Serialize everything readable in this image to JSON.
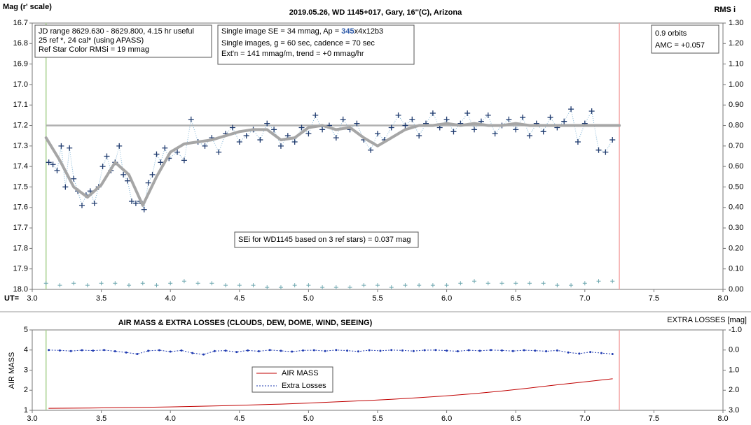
{
  "chart_data": [
    {
      "type": "scatter",
      "title": "2019.05.26, WD 1145+017, Gary, 16''(C), Arizona",
      "ylabel": "Mag (r' scale)",
      "y2label": "RMS i",
      "xlabel": "UT=",
      "xlim": [
        3,
        8
      ],
      "xticks": [
        {
          "value": 3,
          "label": "3.0"
        },
        3.5,
        {
          "value": 4,
          "label": "4.0"
        },
        4.5,
        {
          "value": 5,
          "label": "5.0"
        },
        5.5,
        {
          "value": 6,
          "label": "6.0"
        },
        6.5,
        {
          "value": 7,
          "label": "7.0"
        },
        7.5,
        {
          "value": 8,
          "label": "8.0"
        }
      ],
      "ylim": [
        16.7,
        18.0
      ],
      "y_inverted": true,
      "yticks": [
        16.7,
        16.8,
        16.9,
        {
          "value": 17,
          "label": "17.0"
        },
        17.1,
        17.2,
        17.3,
        17.4,
        17.5,
        17.6,
        17.7,
        17.8,
        17.9,
        {
          "value": 18,
          "label": "18.0"
        }
      ],
      "y2lim": [
        0,
        1.3
      ],
      "y2ticks": [
        {
          "value": 0,
          "label": "0.00"
        },
        {
          "value": 0.1,
          "label": "0.10"
        },
        {
          "value": 0.2,
          "label": "0.20"
        },
        {
          "value": 0.3,
          "label": "0.30"
        },
        {
          "value": 0.4,
          "label": "0.40"
        },
        {
          "value": 0.5,
          "label": "0.50"
        },
        {
          "value": 0.6,
          "label": "0.60"
        },
        {
          "value": 0.7,
          "label": "0.70"
        },
        {
          "value": 0.8,
          "label": "0.80"
        },
        {
          "value": 0.9,
          "label": "0.90"
        },
        {
          "value": 1,
          "label": "1.00"
        },
        {
          "value": 1.1,
          "label": "1.10"
        },
        {
          "value": 1.2,
          "label": "1.20"
        },
        {
          "value": 1.3,
          "label": "1.30"
        }
      ],
      "vlines": [
        {
          "value": 3.1,
          "color": "#a9d18e"
        },
        {
          "value": 7.25,
          "color": "#f4a6a6"
        }
      ],
      "hlines": [
        {
          "value": 17.2,
          "color": "#b0b0b0"
        }
      ],
      "series": [
        {
          "type": "scatter",
          "color": "#1f3a6e",
          "x": [
            3.12,
            3.15,
            3.18,
            3.21,
            3.24,
            3.27,
            3.3,
            3.33,
            3.36,
            3.39,
            3.42,
            3.45,
            3.48,
            3.51,
            3.54,
            3.57,
            3.6,
            3.63,
            3.66,
            3.69,
            3.72,
            3.75,
            3.78,
            3.81,
            3.84,
            3.87,
            3.9,
            3.93,
            3.96,
            3.99,
            4.05,
            4.1,
            4.15,
            4.2,
            4.25,
            4.3,
            4.35,
            4.4,
            4.45,
            4.5,
            4.55,
            4.6,
            4.65,
            4.7,
            4.75,
            4.8,
            4.85,
            4.9,
            4.95,
            5.0,
            5.05,
            5.1,
            5.15,
            5.2,
            5.25,
            5.3,
            5.35,
            5.4,
            5.45,
            5.5,
            5.55,
            5.6,
            5.65,
            5.7,
            5.75,
            5.8,
            5.85,
            5.9,
            5.95,
            6.0,
            6.05,
            6.1,
            6.15,
            6.2,
            6.25,
            6.3,
            6.35,
            6.4,
            6.45,
            6.5,
            6.55,
            6.6,
            6.65,
            6.7,
            6.75,
            6.8,
            6.85,
            6.9,
            6.95,
            7.0,
            7.05,
            7.1,
            7.15,
            7.2
          ],
          "values": [
            17.38,
            17.39,
            17.42,
            17.3,
            17.5,
            17.31,
            17.46,
            17.52,
            17.59,
            17.54,
            17.52,
            17.58,
            17.5,
            17.4,
            17.35,
            17.42,
            17.38,
            17.3,
            17.44,
            17.47,
            17.57,
            17.58,
            17.57,
            17.61,
            17.48,
            17.44,
            17.34,
            17.38,
            17.31,
            17.36,
            17.33,
            17.37,
            17.17,
            17.28,
            17.3,
            17.26,
            17.33,
            17.24,
            17.21,
            17.28,
            17.25,
            17.22,
            17.27,
            17.19,
            17.22,
            17.3,
            17.25,
            17.28,
            17.21,
            17.24,
            17.15,
            17.22,
            17.2,
            17.26,
            17.17,
            17.22,
            17.19,
            17.27,
            17.32,
            17.24,
            17.27,
            17.21,
            17.15,
            17.2,
            17.17,
            17.25,
            17.19,
            17.14,
            17.21,
            17.17,
            17.23,
            17.19,
            17.14,
            17.22,
            17.18,
            17.15,
            17.24,
            17.2,
            17.17,
            17.22,
            17.16,
            17.25,
            17.19,
            17.23,
            17.16,
            17.21,
            17.18,
            17.12,
            17.28,
            17.19,
            17.13,
            17.32,
            17.33,
            17.27
          ]
        },
        {
          "type": "line",
          "color": "#a6a6a6",
          "x": [
            3.1,
            3.2,
            3.3,
            3.4,
            3.5,
            3.6,
            3.7,
            3.8,
            3.9,
            4.0,
            4.1,
            4.2,
            4.3,
            4.4,
            4.5,
            4.6,
            4.7,
            4.8,
            4.9,
            5.0,
            5.1,
            5.2,
            5.3,
            5.4,
            5.5,
            5.6,
            5.7,
            5.8,
            5.9,
            6.0,
            6.1,
            6.2,
            6.3,
            6.4,
            6.5,
            6.6,
            6.7,
            6.8,
            6.9,
            7.0,
            7.1,
            7.2,
            7.25
          ],
          "values": [
            17.26,
            17.37,
            17.5,
            17.55,
            17.49,
            17.38,
            17.44,
            17.59,
            17.45,
            17.33,
            17.29,
            17.28,
            17.27,
            17.25,
            17.23,
            17.22,
            17.22,
            17.27,
            17.26,
            17.21,
            17.2,
            17.22,
            17.21,
            17.26,
            17.3,
            17.26,
            17.22,
            17.2,
            17.2,
            17.19,
            17.2,
            17.19,
            17.2,
            17.2,
            17.19,
            17.2,
            17.2,
            17.2,
            17.2,
            17.2,
            17.2,
            17.2,
            17.2
          ]
        },
        {
          "type": "rms",
          "color": "#6fa8b0",
          "axis": "y2",
          "x": [
            3.1,
            3.2,
            3.3,
            3.4,
            3.5,
            3.6,
            3.7,
            3.8,
            3.9,
            4.0,
            4.1,
            4.2,
            4.3,
            4.4,
            4.5,
            4.6,
            4.7,
            4.8,
            4.9,
            5.0,
            5.1,
            5.2,
            5.3,
            5.4,
            5.5,
            5.6,
            5.7,
            5.8,
            5.9,
            6.0,
            6.1,
            6.2,
            6.3,
            6.4,
            6.5,
            6.6,
            6.7,
            6.8,
            6.9,
            7.0,
            7.1,
            7.2
          ],
          "values": [
            0.03,
            0.02,
            0.03,
            0.02,
            0.03,
            0.03,
            0.02,
            0.03,
            0.02,
            0.03,
            0.04,
            0.03,
            0.03,
            0.02,
            0.02,
            0.02,
            0.01,
            0.01,
            0.02,
            0.02,
            0.01,
            0.01,
            0.01,
            0.02,
            0.02,
            0.01,
            0.02,
            0.02,
            0.02,
            0.02,
            0.03,
            0.04,
            0.03,
            0.03,
            0.03,
            0.03,
            0.03,
            0.02,
            0.02,
            0.03,
            0.04,
            0.04
          ]
        }
      ],
      "annotations": [
        {
          "lines": [
            "JD range 8629.630 - 8629.800, 4.15 hr useful",
            " 25 ref *, 24 cal* (using APASS)",
            "Ref Star Color RMSi = 19 mmag"
          ]
        },
        {
          "lines": [
            [
              "Single image SE = 34 mmag, Ap = ",
              "345",
              "x4x12b3"
            ],
            "Single images, g = 60 sec, cadence = 70 sec",
            "Ext'n = 141 mmag/m, trend = +0 mmag/hr"
          ]
        },
        {
          "lines": [
            "0.9 orbits",
            "AMC = +0.057"
          ]
        },
        {
          "lines": [
            "SEi for WD1145 based on 3 ref stars) = 0.037 mag"
          ]
        }
      ]
    },
    {
      "type": "line",
      "title": "AIR MASS & EXTRA LOSSES (CLOUDS, DEW, DOME, WIND, SEEING)",
      "ylabel": "AIR MASS",
      "y2label": "EXTRA LOSSES [mag]",
      "xlim": [
        3,
        8
      ],
      "xticks": [
        {
          "value": 3,
          "label": "3.0"
        },
        3.5,
        {
          "value": 4,
          "label": "4.0"
        },
        4.5,
        {
          "value": 5,
          "label": "5.0"
        },
        5.5,
        {
          "value": 6,
          "label": "6.0"
        },
        6.5,
        {
          "value": 7,
          "label": "7.0"
        },
        7.5,
        {
          "value": 8,
          "label": "8.0"
        }
      ],
      "ylim": [
        1,
        5
      ],
      "yticks": [
        1,
        2,
        3,
        4,
        5
      ],
      "y2lim": [
        -1,
        3
      ],
      "y2_inverted": true,
      "y2ticks": [
        {
          "value": -1,
          "label": "-1.0"
        },
        {
          "value": 0,
          "label": "0.0"
        },
        {
          "value": 1,
          "label": "1.0"
        },
        {
          "value": 2,
          "label": "2.0"
        },
        {
          "value": 3,
          "label": "3.0"
        }
      ],
      "vlines": [
        {
          "value": 3.1,
          "color": "#a9d18e"
        },
        {
          "value": 7.25,
          "color": "#f4a6a6"
        }
      ],
      "series": [
        {
          "name": "AIR MASS",
          "type": "line",
          "color": "#c00000",
          "x": [
            3.12,
            3.4,
            3.6,
            3.8,
            4.0,
            4.2,
            4.4,
            4.6,
            4.8,
            5.0,
            5.2,
            5.4,
            5.6,
            5.8,
            6.0,
            6.2,
            6.4,
            6.6,
            6.8,
            7.0,
            7.2
          ],
          "values": [
            1.1,
            1.11,
            1.13,
            1.15,
            1.17,
            1.2,
            1.23,
            1.27,
            1.31,
            1.36,
            1.42,
            1.48,
            1.55,
            1.63,
            1.72,
            1.83,
            1.96,
            2.11,
            2.27,
            2.42,
            2.57
          ]
        },
        {
          "name": "Extra Losses",
          "type": "dotline",
          "color": "#1f3ab0",
          "axis": "y2",
          "x": [
            3.12,
            3.2,
            3.28,
            3.36,
            3.44,
            3.52,
            3.6,
            3.68,
            3.76,
            3.84,
            3.92,
            4.0,
            4.08,
            4.16,
            4.24,
            4.32,
            4.4,
            4.48,
            4.56,
            4.64,
            4.72,
            4.8,
            4.88,
            4.96,
            5.04,
            5.12,
            5.2,
            5.28,
            5.36,
            5.44,
            5.52,
            5.6,
            5.68,
            5.76,
            5.84,
            5.92,
            6.0,
            6.08,
            6.16,
            6.24,
            6.32,
            6.4,
            6.48,
            6.56,
            6.64,
            6.72,
            6.8,
            6.88,
            6.96,
            7.04,
            7.12,
            7.2
          ],
          "values": [
            0.0,
            0.02,
            0.05,
            0.01,
            0.03,
            0.0,
            0.06,
            0.12,
            0.2,
            0.04,
            0.01,
            0.08,
            0.02,
            0.15,
            0.22,
            0.05,
            0.03,
            0.1,
            0.02,
            0.06,
            0.0,
            0.04,
            0.08,
            0.02,
            0.01,
            0.05,
            0.0,
            0.03,
            0.07,
            0.01,
            0.04,
            0.0,
            0.02,
            0.05,
            0.01,
            0.0,
            0.03,
            0.06,
            0.01,
            0.04,
            0.0,
            0.02,
            0.05,
            0.01,
            0.03,
            0.06,
            0.02,
            0.12,
            0.18,
            0.1,
            0.15,
            0.2
          ]
        }
      ]
    }
  ]
}
